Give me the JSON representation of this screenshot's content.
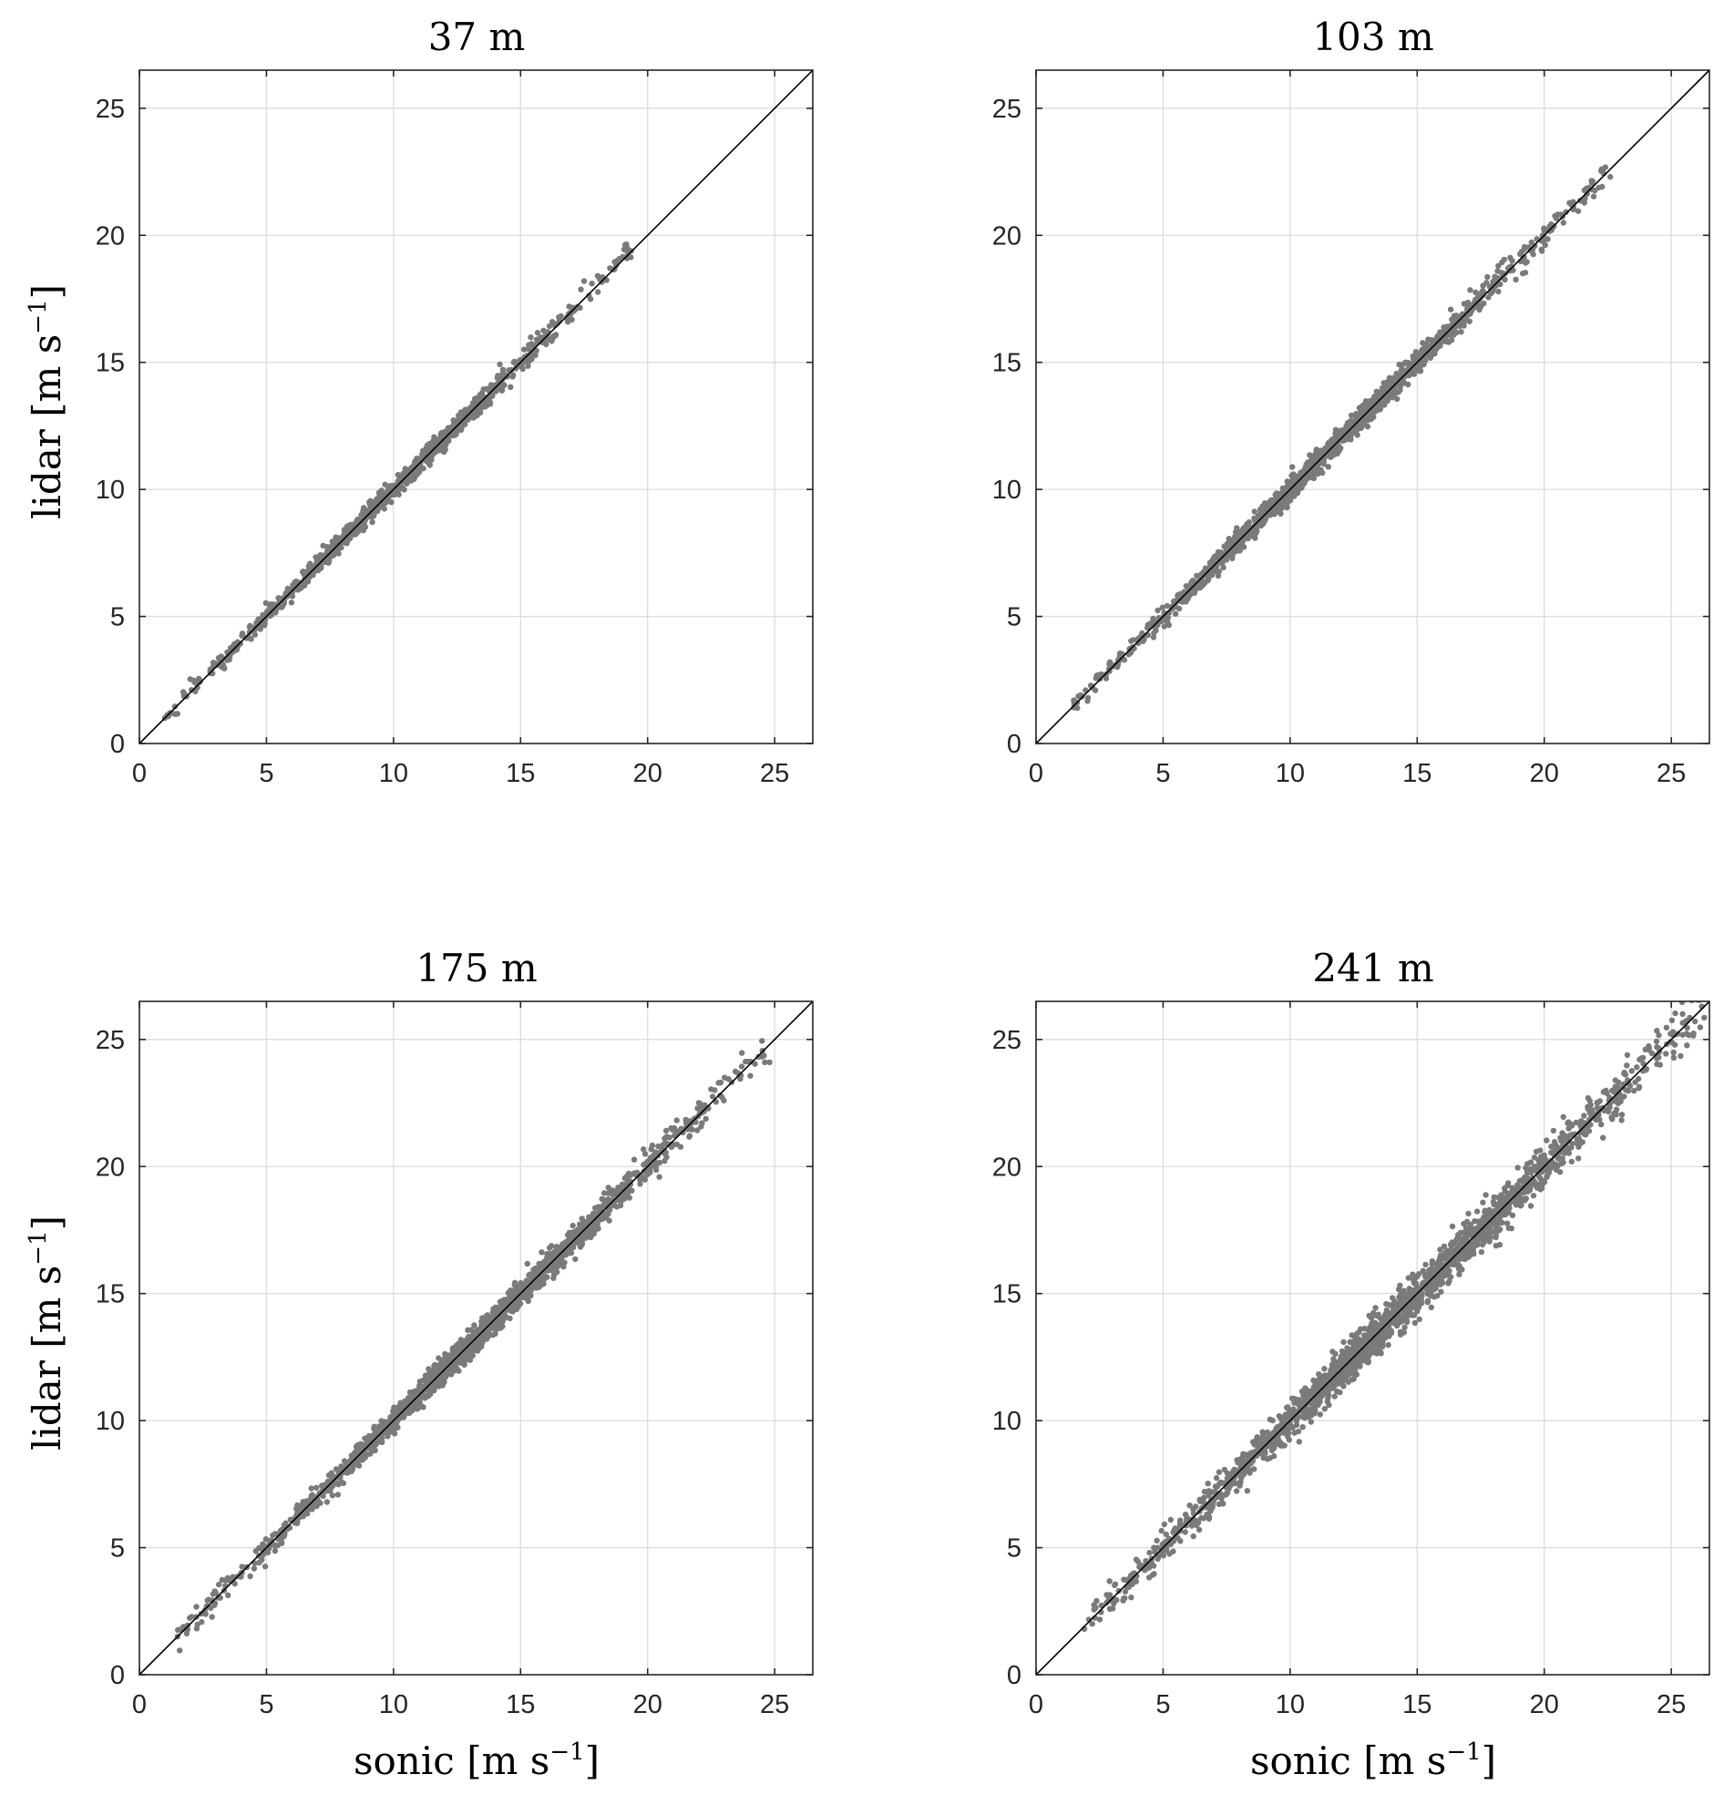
{
  "figure": {
    "background": "#ffffff",
    "point_color": "#7a7a7a",
    "line_color": "#000000",
    "grid_color": "#dcdcdc",
    "axes_color": "#262626"
  },
  "labels": {
    "ylabel_main": "lidar",
    "xlabel_main": "sonic",
    "unit_open": "[m s",
    "unit_sup": "−1",
    "unit_close": "]"
  },
  "chart_data": [
    {
      "type": "scatter",
      "title": "37 m",
      "xlabel": "",
      "ylabel": "lidar [m s^-1]",
      "xlim": [
        0,
        26.5
      ],
      "ylim": [
        0,
        26.5
      ],
      "xticks": [
        "0",
        "5",
        "10",
        "15",
        "20",
        "25"
      ],
      "yticks": [
        "0",
        "5",
        "10",
        "15",
        "20",
        "25"
      ],
      "grid": true,
      "reference_line": "1:1",
      "x_range": [
        1.0,
        19.3
      ],
      "spread": 0.22,
      "points": 950,
      "points_sample": [
        {
          "x": 1.0,
          "y": 1.0
        },
        {
          "x": 3.0,
          "y": 3.1
        },
        {
          "x": 5.0,
          "y": 5.1
        },
        {
          "x": 8.0,
          "y": 8.1
        },
        {
          "x": 10.0,
          "y": 10.1
        },
        {
          "x": 12.0,
          "y": 12.2
        },
        {
          "x": 15.0,
          "y": 15.1
        },
        {
          "x": 17.5,
          "y": 18.2
        },
        {
          "x": 19.2,
          "y": 19.5
        }
      ]
    },
    {
      "type": "scatter",
      "title": "103 m",
      "xlabel": "",
      "ylabel": "",
      "xlim": [
        0,
        26.5
      ],
      "ylim": [
        0,
        26.5
      ],
      "xticks": [
        "0",
        "5",
        "10",
        "15",
        "20",
        "25"
      ],
      "yticks": [
        "0",
        "5",
        "10",
        "15",
        "20",
        "25"
      ],
      "grid": true,
      "reference_line": "1:1",
      "x_range": [
        1.5,
        22.6
      ],
      "spread": 0.25,
      "points": 1400,
      "points_sample": [
        {
          "x": 1.5,
          "y": 1.6
        },
        {
          "x": 4.0,
          "y": 4.1
        },
        {
          "x": 6.0,
          "y": 5.9
        },
        {
          "x": 10.0,
          "y": 10.0
        },
        {
          "x": 14.0,
          "y": 14.0
        },
        {
          "x": 18.0,
          "y": 18.0
        },
        {
          "x": 20.0,
          "y": 20.2
        },
        {
          "x": 22.6,
          "y": 22.3
        }
      ]
    },
    {
      "type": "scatter",
      "title": "175 m",
      "xlabel": "sonic [m s^-1]",
      "ylabel": "lidar [m s^-1]",
      "xlim": [
        0,
        26.5
      ],
      "ylim": [
        0,
        26.5
      ],
      "xticks": [
        "0",
        "5",
        "10",
        "15",
        "20",
        "25"
      ],
      "yticks": [
        "0",
        "5",
        "10",
        "15",
        "20",
        "25"
      ],
      "grid": true,
      "reference_line": "1:1",
      "x_range": [
        1.5,
        24.8
      ],
      "spread": 0.3,
      "points": 1600,
      "points_sample": [
        {
          "x": 1.5,
          "y": 1.5
        },
        {
          "x": 4.0,
          "y": 4.0
        },
        {
          "x": 8.0,
          "y": 8.0
        },
        {
          "x": 12.0,
          "y": 12.1
        },
        {
          "x": 15.5,
          "y": 15.6
        },
        {
          "x": 20.0,
          "y": 20.0
        },
        {
          "x": 23.0,
          "y": 22.6
        },
        {
          "x": 24.8,
          "y": 24.1
        }
      ]
    },
    {
      "type": "scatter",
      "title": "241 m",
      "xlabel": "sonic [m s^-1]",
      "ylabel": "",
      "xlim": [
        0,
        26.5
      ],
      "ylim": [
        0,
        26.5
      ],
      "xticks": [
        "0",
        "5",
        "10",
        "15",
        "20",
        "25"
      ],
      "yticks": [
        "0",
        "5",
        "10",
        "15",
        "20",
        "25"
      ],
      "grid": true,
      "reference_line": "1:1",
      "x_range": [
        1.9,
        26.2
      ],
      "spread": 0.45,
      "points": 1900,
      "points_sample": [
        {
          "x": 1.9,
          "y": 1.8
        },
        {
          "x": 5.0,
          "y": 5.1
        },
        {
          "x": 10.0,
          "y": 10.0
        },
        {
          "x": 13.0,
          "y": 13.0
        },
        {
          "x": 16.0,
          "y": 16.1
        },
        {
          "x": 20.0,
          "y": 20.0
        },
        {
          "x": 24.0,
          "y": 23.8
        },
        {
          "x": 26.2,
          "y": 26.3
        }
      ]
    }
  ]
}
